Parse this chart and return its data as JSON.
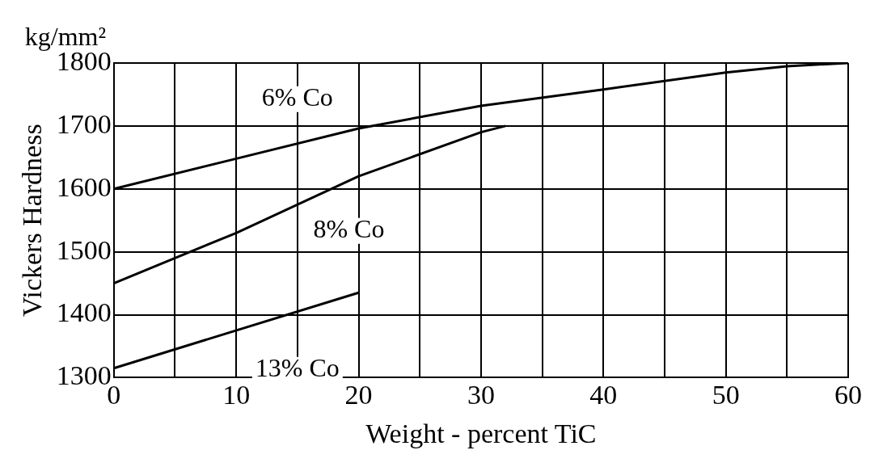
{
  "chart_data": {
    "type": "line",
    "xlabel": "Weight - percent TiC",
    "ylabel": "Vickers Hardness",
    "xlim": [
      0,
      60
    ],
    "ylim": [
      1300,
      1800
    ],
    "xticks": [
      0,
      {
        "value": 5,
        "label": null
      },
      10,
      {
        "value": 15,
        "label": null
      },
      20,
      {
        "value": 25,
        "label": null
      },
      30,
      {
        "value": 35,
        "label": null
      },
      40,
      {
        "value": 45,
        "label": null
      },
      50,
      {
        "value": 55,
        "label": null
      },
      60
    ],
    "yticks": [
      1300,
      1400,
      1500,
      1600,
      1700,
      1800
    ],
    "grid": true,
    "legend": false,
    "marker": "none",
    "line_style": "solid",
    "series": [
      {
        "name": "6% Co",
        "color": "#000000",
        "x": [
          0,
          10,
          20,
          30,
          40,
          50,
          55,
          60
        ],
        "values": [
          1600,
          1648,
          1696,
          1732,
          1758,
          1785,
          1795,
          1800
        ]
      },
      {
        "name": "8% Co",
        "color": "#000000",
        "x": [
          0,
          5,
          10,
          20,
          30,
          32
        ],
        "values": [
          1450,
          1490,
          1530,
          1620,
          1690,
          1700
        ]
      },
      {
        "name": "13% Co",
        "color": "#000000",
        "x": [
          0,
          20
        ],
        "values": [
          1315,
          1435
        ]
      }
    ],
    "annotations": [
      "kg/mm²"
    ]
  }
}
